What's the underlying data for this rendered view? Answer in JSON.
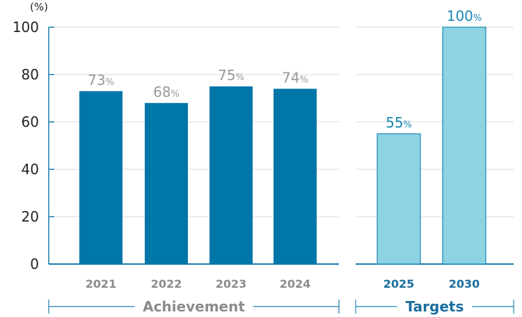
{
  "chart_data": {
    "type": "bar",
    "y_unit": "(%)",
    "ylim": [
      0,
      100
    ],
    "yticks": [
      0,
      20,
      40,
      60,
      80,
      100
    ],
    "grid": true,
    "groups": [
      {
        "label": "Achievement",
        "categories": [
          "2021",
          "2022",
          "2023",
          "2024"
        ],
        "values": [
          73,
          68,
          75,
          74
        ],
        "value_labels": [
          "73",
          "68",
          "75",
          "74"
        ],
        "bar_color": "#0077a8",
        "label_color": "#999999"
      },
      {
        "label": "Targets",
        "categories": [
          "2025",
          "2030"
        ],
        "values": [
          55,
          100
        ],
        "value_labels": [
          "55",
          "100"
        ],
        "bar_color": "#8dd3e3",
        "bar_stroke": "#1a88b0",
        "label_color": "#1a88b0"
      }
    ],
    "percent_suffix": "%"
  },
  "colors": {
    "axis": "#1a7aa8",
    "grid": "#d9d9d9",
    "tick_text": "#222222",
    "category_text_achievement": "#8c8c8c",
    "category_text_targets": "#1a6e9e"
  }
}
